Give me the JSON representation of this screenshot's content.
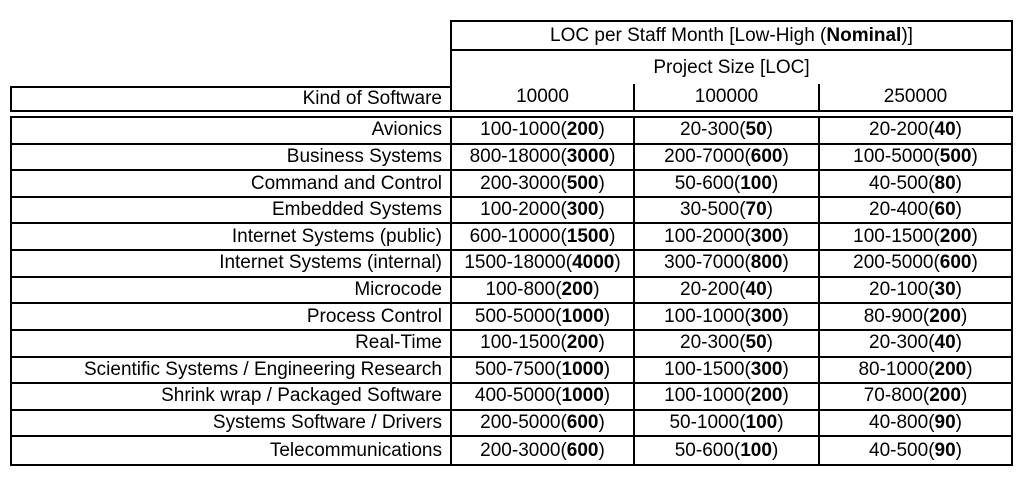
{
  "colors": {
    "border": "#000000",
    "background": "#ffffff",
    "text": "#000000"
  },
  "table": {
    "title": {
      "prefix": "LOC per Staff Month [Low-High (",
      "bold": "Nominal",
      "suffix": ")]"
    },
    "subtitle": "Project Size [LOC]",
    "kind_of_software_label": "Kind of Software",
    "size_columns": [
      "10000",
      "100000",
      "250000"
    ],
    "rows": [
      {
        "label": "Avionics",
        "cells": [
          {
            "range": "100-1000",
            "nominal": "200"
          },
          {
            "range": "20-300",
            "nominal": "50"
          },
          {
            "range": "20-200",
            "nominal": "40"
          }
        ]
      },
      {
        "label": "Business Systems",
        "cells": [
          {
            "range": "800-18000",
            "nominal": "3000"
          },
          {
            "range": "200-7000",
            "nominal": "600"
          },
          {
            "range": "100-5000",
            "nominal": "500"
          }
        ]
      },
      {
        "label": "Command and Control",
        "cells": [
          {
            "range": "200-3000",
            "nominal": "500"
          },
          {
            "range": "50-600",
            "nominal": "100"
          },
          {
            "range": "40-500",
            "nominal": "80"
          }
        ]
      },
      {
        "label": "Embedded Systems",
        "cells": [
          {
            "range": "100-2000",
            "nominal": "300"
          },
          {
            "range": "30-500",
            "nominal": "70"
          },
          {
            "range": "20-400",
            "nominal": "60"
          }
        ]
      },
      {
        "label": "Internet Systems (public)",
        "cells": [
          {
            "range": "600-10000",
            "nominal": "1500"
          },
          {
            "range": "100-2000",
            "nominal": "300"
          },
          {
            "range": "100-1500",
            "nominal": "200"
          }
        ]
      },
      {
        "label": "Internet Systems (internal)",
        "cells": [
          {
            "range": "1500-18000",
            "nominal": "4000"
          },
          {
            "range": "300-7000",
            "nominal": "800"
          },
          {
            "range": "200-5000",
            "nominal": "600"
          }
        ]
      },
      {
        "label": "Microcode",
        "cells": [
          {
            "range": "100-800",
            "nominal": "200"
          },
          {
            "range": "20-200",
            "nominal": "40"
          },
          {
            "range": "20-100",
            "nominal": "30"
          }
        ]
      },
      {
        "label": "Process Control",
        "cells": [
          {
            "range": "500-5000",
            "nominal": "1000"
          },
          {
            "range": "100-1000",
            "nominal": "300"
          },
          {
            "range": "80-900",
            "nominal": "200"
          }
        ]
      },
      {
        "label": "Real-Time",
        "cells": [
          {
            "range": "100-1500",
            "nominal": "200"
          },
          {
            "range": "20-300",
            "nominal": "50"
          },
          {
            "range": "20-300",
            "nominal": "40"
          }
        ]
      },
      {
        "label": "Scientific Systems / Engineering Research",
        "cells": [
          {
            "range": "500-7500",
            "nominal": "1000"
          },
          {
            "range": "100-1500",
            "nominal": "300"
          },
          {
            "range": "80-1000",
            "nominal": "200"
          }
        ]
      },
      {
        "label": "Shrink wrap / Packaged Software",
        "cells": [
          {
            "range": "400-5000",
            "nominal": "1000"
          },
          {
            "range": "100-1000",
            "nominal": "200"
          },
          {
            "range": "70-800",
            "nominal": "200"
          }
        ]
      },
      {
        "label": "Systems Software / Drivers",
        "cells": [
          {
            "range": "200-5000",
            "nominal": "600"
          },
          {
            "range": "50-1000",
            "nominal": "100"
          },
          {
            "range": "40-800",
            "nominal": "90"
          }
        ]
      },
      {
        "label": "Telecommunications",
        "cells": [
          {
            "range": "200-3000",
            "nominal": "600"
          },
          {
            "range": "50-600",
            "nominal": "100"
          },
          {
            "range": "40-500",
            "nominal": "90"
          }
        ]
      }
    ]
  }
}
